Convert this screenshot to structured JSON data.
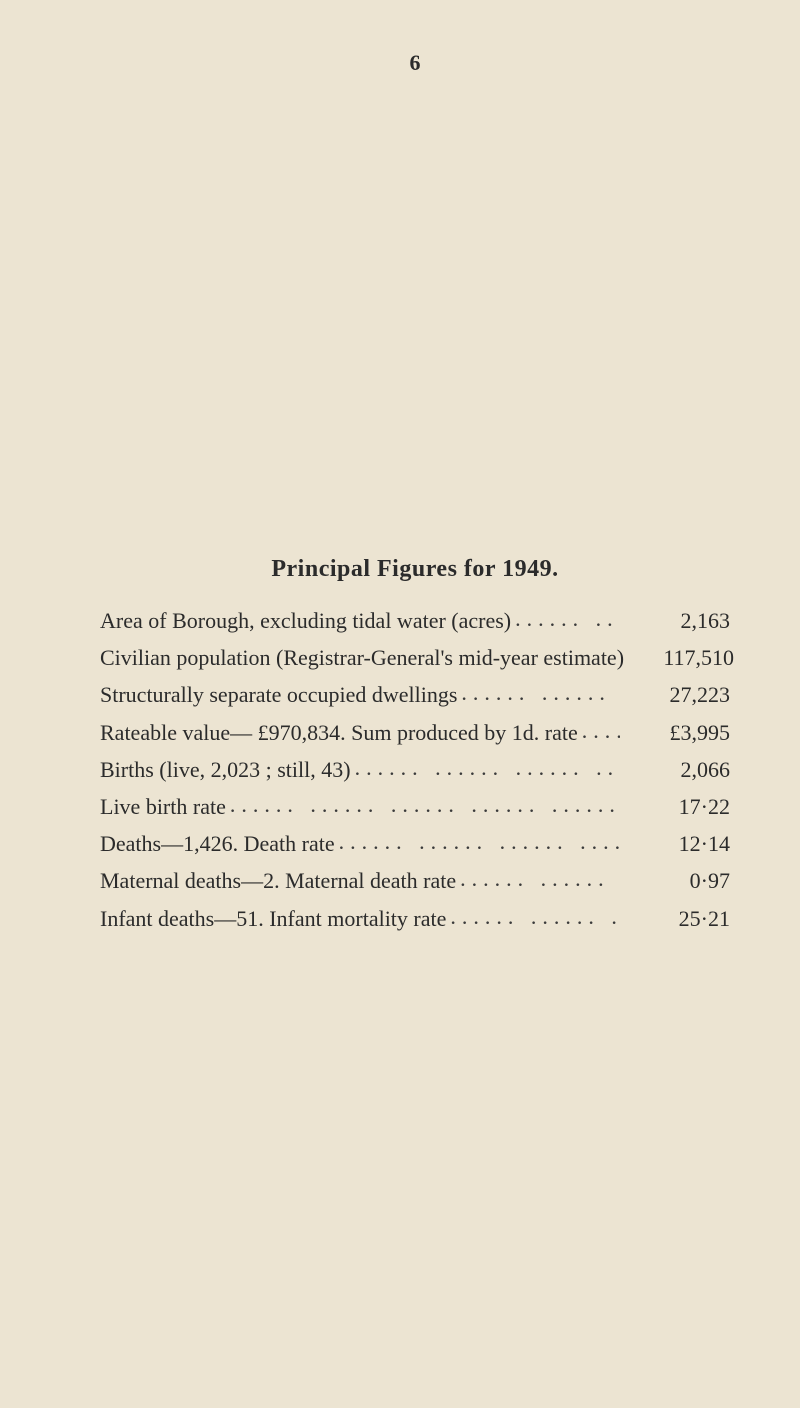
{
  "page_number": "6",
  "title": "Principal Figures for 1949.",
  "rows": [
    {
      "label": "Area of Borough, excluding tidal water (acres)",
      "value": "2,163"
    },
    {
      "label": "Civilian population (Registrar-General's mid-year estimate)",
      "value": "117,510"
    },
    {
      "label": "Structurally separate occupied dwellings",
      "value": "27,223"
    },
    {
      "label": "Rateable value— £970,834.  Sum produced by 1d. rate",
      "value": "£3,995"
    },
    {
      "label": "Births (live, 2,023 ; still, 43)",
      "value": "2,066"
    },
    {
      "label": "Live birth rate",
      "value": "17·22"
    },
    {
      "label": "Deaths—1,426.  Death rate",
      "value": "12·14"
    },
    {
      "label": "Maternal deaths—2.  Maternal death rate",
      "value": "0·97"
    },
    {
      "label": "Infant deaths—51.  Infant mortality rate",
      "value": "25·21"
    }
  ],
  "colors": {
    "background": "#ece4d2",
    "text": "#2b2b2b"
  },
  "typography": {
    "body_fontsize": 22,
    "title_fontsize": 24,
    "font_family": "Times New Roman"
  },
  "leader_glyph": "......   ......   ......   ......   ......   ......   ......"
}
